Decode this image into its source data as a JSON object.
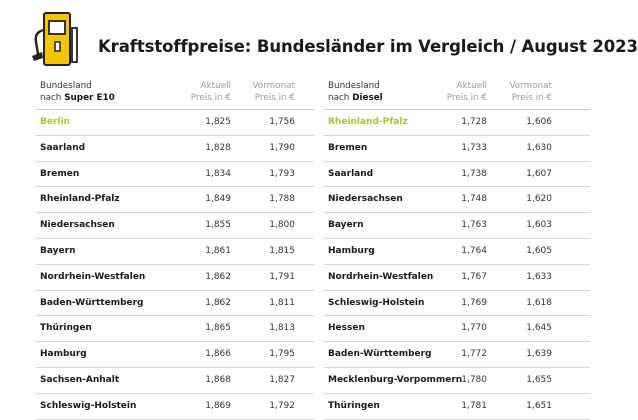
{
  "title": "Kraftstoffpreise: Bundesländer im Vergleich / August 2023",
  "colors": {
    "accent_yellow": "#f5c400",
    "highlight_green": "#a9c23a"
  },
  "icons": {
    "header": "fuel-pump-icon"
  },
  "left_table": {
    "header": {
      "name_line1": "Bundesland",
      "name_line2_prefix": "nach ",
      "name_line2_bold": "Super E10",
      "current_line1": "Aktuell",
      "current_line2": "Preis in €",
      "previous_line1": "Vormonat",
      "previous_line2": "Preis in €"
    },
    "rows": [
      {
        "state": "Berlin",
        "current": "1,825",
        "previous": "1,756"
      },
      {
        "state": "Saarland",
        "current": "1,828",
        "previous": "1,790"
      },
      {
        "state": "Bremen",
        "current": "1,834",
        "previous": "1,793"
      },
      {
        "state": "Rheinland-Pfalz",
        "current": "1,849",
        "previous": "1,788"
      },
      {
        "state": "Niedersachsen",
        "current": "1,855",
        "previous": "1,800"
      },
      {
        "state": "Bayern",
        "current": "1,861",
        "previous": "1,815"
      },
      {
        "state": "Nordrhein-Westfalen",
        "current": "1,862",
        "previous": "1,791"
      },
      {
        "state": "Baden-Württemberg",
        "current": "1,862",
        "previous": "1,811"
      },
      {
        "state": "Thüringen",
        "current": "1,865",
        "previous": "1,813"
      },
      {
        "state": "Hamburg",
        "current": "1,866",
        "previous": "1,795"
      },
      {
        "state": "Sachsen-Anhalt",
        "current": "1,868",
        "previous": "1,827"
      },
      {
        "state": "Schleswig-Holstein",
        "current": "1,869",
        "previous": "1,792"
      }
    ]
  },
  "right_table": {
    "header": {
      "name_line1": "Bundesland",
      "name_line2_prefix": "nach ",
      "name_line2_bold": "Diesel",
      "current_line1": "Aktuell",
      "current_line2": "Preis in €",
      "previous_line1": "Vormonat",
      "previous_line2": "Preis in €"
    },
    "rows": [
      {
        "state": "Rheinland-Pfalz",
        "current": "1,728",
        "previous": "1,606"
      },
      {
        "state": "Bremen",
        "current": "1,733",
        "previous": "1,630"
      },
      {
        "state": "Saarland",
        "current": "1,738",
        "previous": "1,607"
      },
      {
        "state": "Niedersachsen",
        "current": "1,748",
        "previous": "1,620"
      },
      {
        "state": "Bayern",
        "current": "1,763",
        "previous": "1,603"
      },
      {
        "state": "Hamburg",
        "current": "1,764",
        "previous": "1,605"
      },
      {
        "state": "Nordrhein-Westfalen",
        "current": "1,767",
        "previous": "1,633"
      },
      {
        "state": "Schleswig-Holstein",
        "current": "1,769",
        "previous": "1,618"
      },
      {
        "state": "Hessen",
        "current": "1,770",
        "previous": "1,645"
      },
      {
        "state": "Baden-Württemberg",
        "current": "1,772",
        "previous": "1,639"
      },
      {
        "state": "Mecklenburg-Vorpommern",
        "current": "1,780",
        "previous": "1,655"
      },
      {
        "state": "Thüringen",
        "current": "1,781",
        "previous": "1,651"
      }
    ]
  }
}
